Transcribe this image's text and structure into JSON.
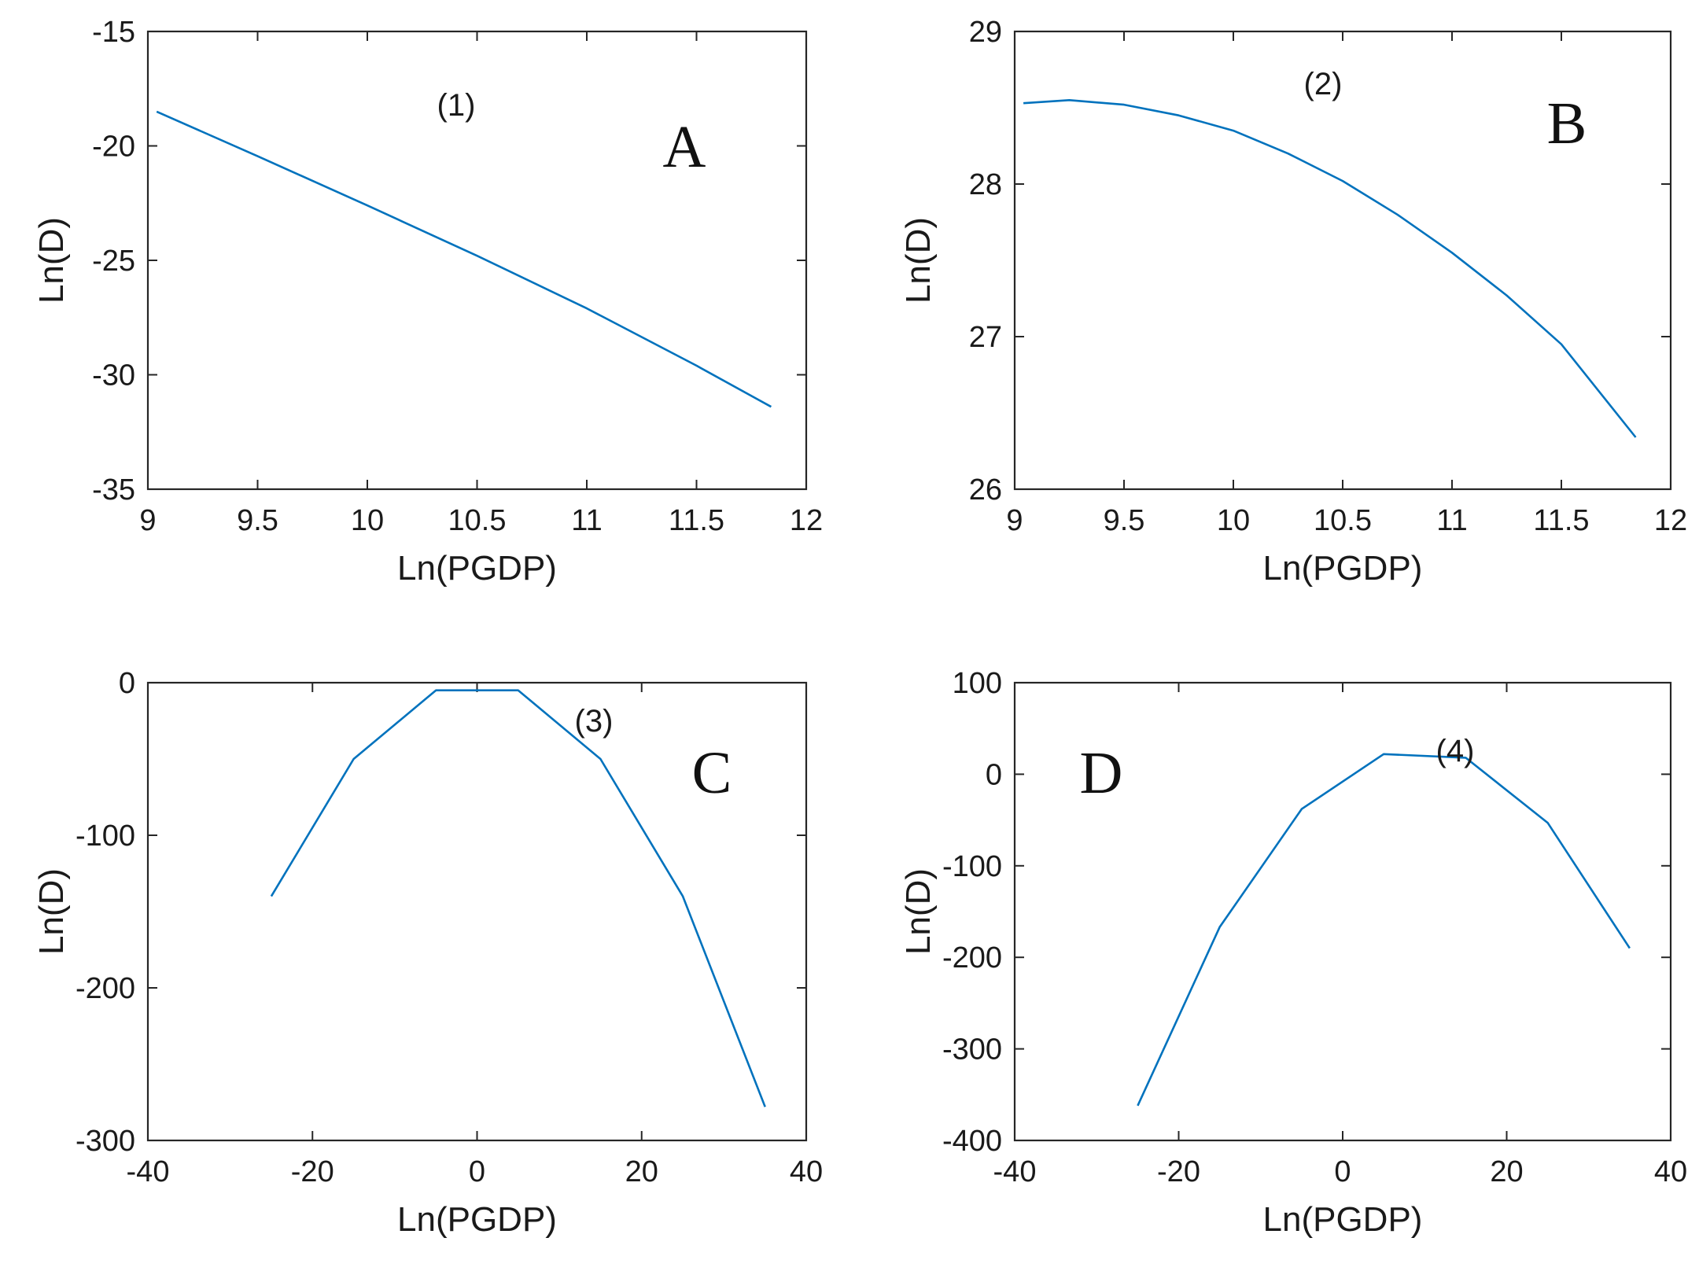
{
  "figure": {
    "line_color": "#0072BD",
    "axis_color": "#262626",
    "background": "#ffffff"
  },
  "chart_data": [
    {
      "type": "line",
      "panel": "A",
      "annotation": "(1)",
      "xlabel": "Ln(PGDP)",
      "ylabel": "Ln(D)",
      "xlim": [
        9,
        12
      ],
      "ylim": [
        -35,
        -15
      ],
      "xticks": [
        9,
        9.5,
        10,
        10.5,
        11,
        11.5,
        12
      ],
      "xtick_labels": [
        "9",
        "9.5",
        "10",
        "10.5",
        "11",
        "11.5",
        "12"
      ],
      "yticks": [
        -35,
        -30,
        -25,
        -20,
        -15
      ],
      "ytick_labels": [
        "-35",
        "-30",
        "-25",
        "-20",
        "-15"
      ],
      "x": [
        9.04,
        9.5,
        10.0,
        10.5,
        11.0,
        11.5,
        11.84
      ],
      "y": [
        -18.5,
        -20.45,
        -22.6,
        -24.8,
        -27.1,
        -29.6,
        -31.4
      ]
    },
    {
      "type": "line",
      "panel": "B",
      "annotation": "(2)",
      "xlabel": "Ln(PGDP)",
      "ylabel": "Ln(D)",
      "xlim": [
        9,
        12
      ],
      "ylim": [
        26,
        29
      ],
      "xticks": [
        9,
        9.5,
        10,
        10.5,
        11,
        11.5,
        12
      ],
      "xtick_labels": [
        "9",
        "9.5",
        "10",
        "10.5",
        "11",
        "11.5",
        "12"
      ],
      "yticks": [
        26,
        27,
        28,
        29
      ],
      "ytick_labels": [
        "26",
        "27",
        "28",
        "29"
      ],
      "x": [
        9.04,
        9.25,
        9.5,
        9.75,
        10.0,
        10.25,
        10.5,
        10.75,
        11.0,
        11.25,
        11.5,
        11.84
      ],
      "y": [
        28.53,
        28.55,
        28.52,
        28.45,
        28.35,
        28.2,
        28.02,
        27.8,
        27.55,
        27.27,
        26.95,
        26.34
      ]
    },
    {
      "type": "line",
      "panel": "C",
      "annotation": "(3)",
      "xlabel": "Ln(PGDP)",
      "ylabel": "Ln(D)",
      "xlim": [
        -40,
        40
      ],
      "ylim": [
        -300,
        0
      ],
      "xticks": [
        -40,
        -20,
        0,
        20,
        40
      ],
      "xtick_labels": [
        "-40",
        "-20",
        "0",
        "20",
        "40"
      ],
      "yticks": [
        -300,
        -200,
        -100,
        0
      ],
      "ytick_labels": [
        "-300",
        "-200",
        "-100",
        "0"
      ],
      "x": [
        -25,
        -15,
        -5,
        5,
        15,
        25,
        35
      ],
      "y": [
        -140,
        -50,
        -5,
        -5,
        -50,
        -140,
        -278
      ]
    },
    {
      "type": "line",
      "panel": "D",
      "annotation": "(4)",
      "xlabel": "Ln(PGDP)",
      "ylabel": "Ln(D)",
      "xlim": [
        -40,
        40
      ],
      "ylim": [
        -400,
        100
      ],
      "xticks": [
        -40,
        -20,
        0,
        20,
        40
      ],
      "xtick_labels": [
        "-40",
        "-20",
        "0",
        "20",
        "40"
      ],
      "yticks": [
        -400,
        -300,
        -200,
        -100,
        0,
        100
      ],
      "ytick_labels": [
        "-400",
        "-300",
        "-200",
        "-100",
        "0",
        "100"
      ],
      "x": [
        -25,
        -15,
        -5,
        5,
        15,
        25,
        35
      ],
      "y": [
        -362,
        -167,
        -38,
        22,
        18,
        -53,
        -190
      ]
    }
  ]
}
